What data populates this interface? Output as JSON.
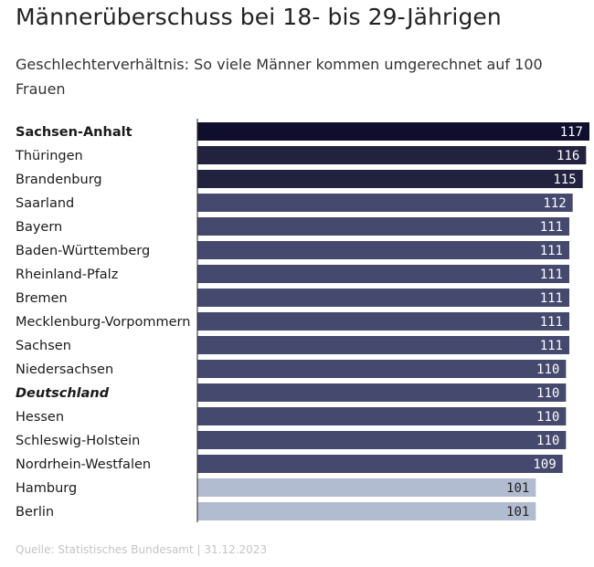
{
  "header": {
    "title": "Männerüberschuss bei 18- bis 29-Jährigen",
    "subtitle": "Geschlechterverhältnis: So viele Männer kommen umgerechnet auf 100 Frauen"
  },
  "footer": {
    "source": "Quelle: Statistisches Bundesamt | 31.12.2023"
  },
  "colors": {
    "top1": "#0f0f2d",
    "top2": "#22223f",
    "mid": "#45496e",
    "low": "#b2bcd0",
    "value_text": "#ffffff",
    "value_text_light": "#222222",
    "axis": "#222222"
  },
  "chart_data": {
    "type": "bar",
    "orientation": "horizontal",
    "title": "Männerüberschuss bei 18- bis 29-Jährigen",
    "subtitle": "Geschlechterverhältnis: So viele Männer kommen umgerechnet auf 100 Frauen",
    "xlabel": "",
    "ylabel": "",
    "xlim": [
      0,
      117
    ],
    "grid": false,
    "categories": [
      "Sachsen-Anhalt",
      "Thüringen",
      "Brandenburg",
      "Saarland",
      "Bayern",
      "Baden-Württemberg",
      "Rheinland-Pfalz",
      "Bremen",
      "Mecklenburg-Vorpommern",
      "Sachsen",
      "Niedersachsen",
      "Deutschland",
      "Hessen",
      "Schleswig-Holstein",
      "Nordrhein-Westfalen",
      "Hamburg",
      "Berlin"
    ],
    "values": [
      117,
      116,
      115,
      112,
      111,
      111,
      111,
      111,
      111,
      111,
      110,
      110,
      110,
      110,
      109,
      101,
      101
    ],
    "color_groups": [
      "top1",
      "top2",
      "top2",
      "mid",
      "mid",
      "mid",
      "mid",
      "mid",
      "mid",
      "mid",
      "mid",
      "mid",
      "mid",
      "mid",
      "mid",
      "low",
      "low"
    ],
    "emphasis": [
      "bold",
      "normal",
      "normal",
      "normal",
      "normal",
      "normal",
      "normal",
      "normal",
      "normal",
      "normal",
      "normal",
      "bold-italic",
      "normal",
      "normal",
      "normal",
      "normal",
      "normal"
    ]
  }
}
